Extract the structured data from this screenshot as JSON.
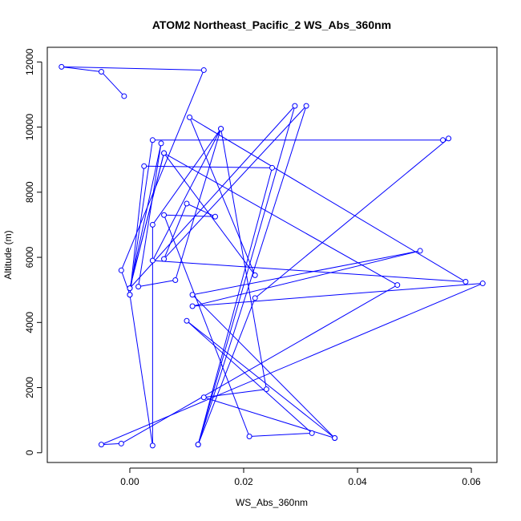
{
  "chart_data": {
    "type": "line",
    "title": "ATOM2 Northeast_Pacific_2 WS_Abs_360nm",
    "xlabel": "WS_Abs_360nm",
    "ylabel": "Altitude (m)",
    "xlim": [
      -0.0145,
      0.0645
    ],
    "ylim": [
      -300,
      12450
    ],
    "xticks": [
      0.0,
      0.02,
      0.04,
      0.06
    ],
    "xtick_labels": [
      "0.00",
      "0.02",
      "0.04",
      "0.06"
    ],
    "yticks": [
      0,
      2000,
      4000,
      6000,
      8000,
      10000,
      12000
    ],
    "ytick_labels": [
      "0",
      "2000",
      "4000",
      "6000",
      "8000",
      "10000",
      "12000"
    ],
    "grid": false,
    "series": [
      {
        "color": "#0000ff",
        "marker": "open-circle",
        "points": [
          [
            -0.001,
            10950
          ],
          [
            -0.005,
            11700
          ],
          [
            -0.012,
            11850
          ],
          [
            0.013,
            11750
          ],
          [
            -0.0015,
            5600
          ],
          [
            0.0,
            4850
          ],
          [
            0.0025,
            8800
          ],
          [
            0.025,
            8750
          ],
          [
            0.012,
            250
          ],
          [
            0.029,
            10650
          ],
          [
            0.0,
            5050
          ],
          [
            0.0055,
            9500
          ],
          [
            0.0015,
            5100
          ],
          [
            0.008,
            5300
          ],
          [
            0.016,
            9950
          ],
          [
            0.004,
            7000
          ],
          [
            0.004,
            220
          ],
          [
            0.0,
            4850
          ],
          [
            0.004,
            9600
          ],
          [
            0.055,
            9600
          ],
          [
            0.056,
            9650
          ],
          [
            0.022,
            4750
          ],
          [
            0.012,
            250
          ],
          [
            0.031,
            10650
          ],
          [
            0.006,
            5950
          ],
          [
            0.01,
            7650
          ],
          [
            0.015,
            7250
          ],
          [
            0.006,
            7300
          ],
          [
            0.021,
            500
          ],
          [
            0.032,
            600
          ],
          [
            0.01,
            4050
          ],
          [
            0.036,
            450
          ],
          [
            0.011,
            4850
          ],
          [
            0.051,
            6200
          ],
          [
            0.011,
            4500
          ],
          [
            0.062,
            5200
          ],
          [
            -0.005,
            250
          ],
          [
            -0.0015,
            280
          ],
          [
            0.047,
            5150
          ],
          [
            0.006,
            9200
          ],
          [
            0.0,
            5050
          ],
          [
            0.006,
            9200
          ],
          [
            0.022,
            5450
          ],
          [
            0.0105,
            10300
          ],
          [
            0.059,
            5250
          ],
          [
            0.004,
            5900
          ],
          [
            0.016,
            9950
          ],
          [
            0.024,
            1950
          ],
          [
            0.013,
            1700
          ],
          [
            0.036,
            450
          ]
        ]
      }
    ]
  }
}
